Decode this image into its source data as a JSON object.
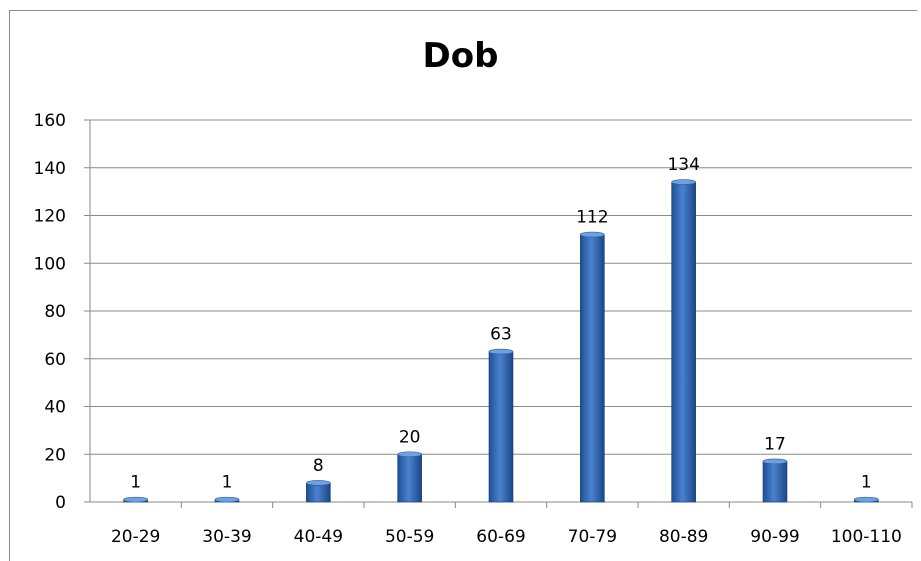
{
  "chart_data": {
    "type": "bar",
    "title": "Dob",
    "xlabel": "",
    "ylabel": "",
    "categories": [
      "20-29",
      "30-39",
      "40-49",
      "50-59",
      "60-69",
      "70-79",
      "80-89",
      "90-99",
      "100-110"
    ],
    "values": [
      1,
      1,
      8,
      20,
      63,
      112,
      134,
      17,
      1
    ],
    "data_labels": [
      "1",
      "1",
      "8",
      "20",
      "63",
      "112",
      "134",
      "17",
      "1"
    ],
    "ylim": [
      0,
      160
    ],
    "yticks": [
      0,
      20,
      40,
      60,
      80,
      100,
      120,
      140,
      160
    ],
    "ytick_labels": [
      "0",
      "20",
      "40",
      "60",
      "80",
      "100",
      "120",
      "140",
      "160"
    ],
    "grid": true,
    "legend": "none",
    "bar_color": "#3a6bb5"
  }
}
